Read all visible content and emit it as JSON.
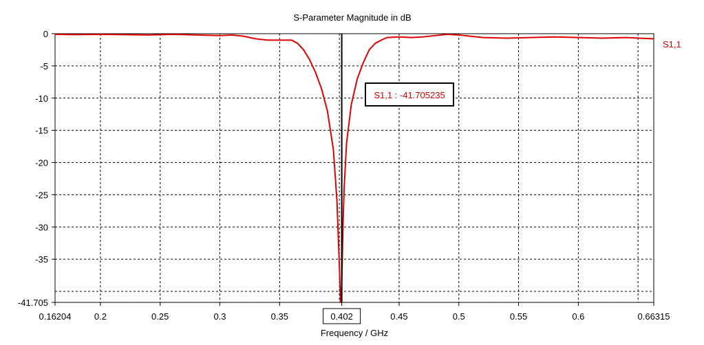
{
  "chart_data": {
    "type": "line",
    "title": "S-Parameter Magnitude in dB",
    "xlabel": "Frequency / GHz",
    "ylabel": "",
    "xlim": [
      0.16204,
      0.66315
    ],
    "ylim": [
      -41.705,
      0
    ],
    "x_ticks": [
      "0.16204",
      "0.2",
      "0.25",
      "0.3",
      "0.35",
      "0.402",
      "0.45",
      "0.5",
      "0.55",
      "0.6",
      "0.66315"
    ],
    "x_tick_values": [
      0.16204,
      0.2,
      0.25,
      0.3,
      0.35,
      0.402,
      0.45,
      0.5,
      0.55,
      0.6,
      0.66315
    ],
    "x_grid_values": [
      0.2,
      0.25,
      0.3,
      0.35,
      0.4,
      0.45,
      0.5,
      0.55,
      0.6,
      0.65
    ],
    "y_ticks": [
      "0",
      "-5",
      "-10",
      "-15",
      "-20",
      "-25",
      "-30",
      "-35",
      "-41.705"
    ],
    "y_tick_values": [
      0,
      -5,
      -10,
      -15,
      -20,
      -25,
      -30,
      -35,
      -41.705
    ],
    "y_grid_values": [
      -5,
      -10,
      -15,
      -20,
      -25,
      -30,
      -35,
      -40
    ],
    "grid": true,
    "legend_position": "right",
    "series": [
      {
        "name": "S1,1",
        "color": "#e00000",
        "x": [
          0.16204,
          0.18,
          0.2,
          0.22,
          0.24,
          0.26,
          0.28,
          0.3,
          0.31,
          0.32,
          0.33,
          0.34,
          0.35,
          0.36,
          0.365,
          0.37,
          0.375,
          0.38,
          0.385,
          0.39,
          0.395,
          0.398,
          0.4,
          0.401,
          0.402,
          0.403,
          0.404,
          0.406,
          0.41,
          0.415,
          0.42,
          0.425,
          0.43,
          0.435,
          0.44,
          0.45,
          0.46,
          0.47,
          0.48,
          0.49,
          0.5,
          0.51,
          0.52,
          0.54,
          0.56,
          0.58,
          0.6,
          0.62,
          0.64,
          0.66315
        ],
        "values": [
          -0.1,
          -0.15,
          -0.1,
          -0.15,
          -0.2,
          -0.1,
          -0.2,
          -0.3,
          -0.2,
          -0.4,
          -0.8,
          -1.0,
          -1.0,
          -1.0,
          -1.5,
          -2.5,
          -4.0,
          -6.0,
          -8.5,
          -12.0,
          -18.0,
          -26.0,
          -36.0,
          -41.705,
          -39.0,
          -30.0,
          -24.0,
          -17.0,
          -11.0,
          -7.0,
          -4.5,
          -2.5,
          -1.5,
          -1.0,
          -0.6,
          -0.5,
          -0.6,
          -0.5,
          -0.3,
          -0.1,
          -0.2,
          -0.4,
          -0.6,
          -0.7,
          -0.6,
          -0.5,
          -0.6,
          -0.7,
          -0.6,
          -0.8
        ]
      }
    ],
    "marker": {
      "x": 0.402,
      "label": "S1,1 : -41.705235",
      "x_box_label": "0.402"
    }
  }
}
